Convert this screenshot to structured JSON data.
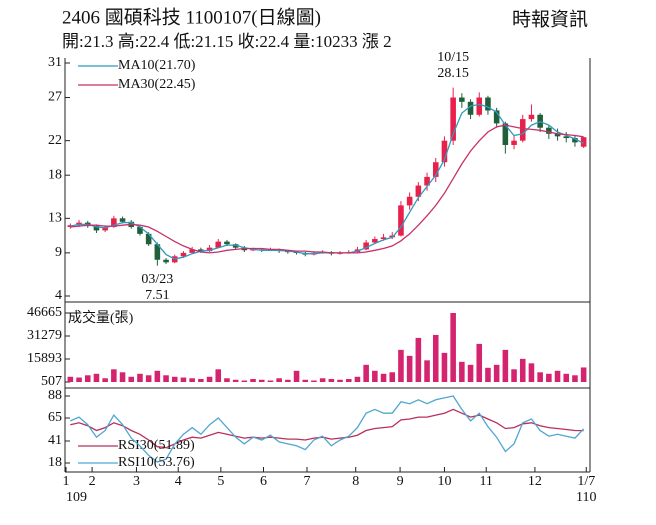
{
  "header": {
    "title": "2406  國碩科技 1100107(日線圖)",
    "source": "時報資訊",
    "quote": "開:21.3 高:22.4 低:21.15 收:22.4 量:10233 漲 2"
  },
  "chart_data": [
    {
      "type": "candlestick",
      "up_color": "#e8204a",
      "down_color": "#1f5f3a",
      "open": [
        12.0,
        12.2,
        12.5,
        12.1,
        11.6,
        12.0,
        13.0,
        12.6,
        12.0,
        11.2,
        10.0,
        8.2,
        7.9,
        8.6,
        9.0,
        9.4,
        9.2,
        9.6,
        10.3,
        10.0,
        9.6,
        9.3,
        9.4,
        9.3,
        9.4,
        9.2,
        9.1,
        9.0,
        8.8,
        9.0,
        9.1,
        8.9,
        9.0,
        9.1,
        9.4,
        10.2,
        10.6,
        10.8,
        11.0,
        14.5,
        15.5,
        16.8,
        17.8,
        19.5,
        22.0,
        27.0,
        26.5,
        25.0,
        27.0,
        25.5,
        24.0,
        21.5,
        22.0,
        24.5,
        25.0,
        23.5,
        22.8,
        22.5,
        22.3,
        21.3
      ],
      "high": [
        12.4,
        12.8,
        12.7,
        12.3,
        12.2,
        13.3,
        13.2,
        12.8,
        12.2,
        11.4,
        10.2,
        8.4,
        8.8,
        9.2,
        9.7,
        9.6,
        9.9,
        10.6,
        10.5,
        10.1,
        9.8,
        9.6,
        9.5,
        9.6,
        9.5,
        9.3,
        9.2,
        9.1,
        9.2,
        9.3,
        9.2,
        9.2,
        9.3,
        9.7,
        10.5,
        10.9,
        11.2,
        11.4,
        15.0,
        16.0,
        17.2,
        18.3,
        20.0,
        22.5,
        28.15,
        27.5,
        26.8,
        27.6,
        27.2,
        25.8,
        24.2,
        22.6,
        25.0,
        26.2,
        25.2,
        23.8,
        23.4,
        23.0,
        22.6,
        22.4
      ],
      "low": [
        11.8,
        12.0,
        11.9,
        11.3,
        11.4,
        11.9,
        12.4,
        11.8,
        11.0,
        9.8,
        7.51,
        7.7,
        7.8,
        8.4,
        8.9,
        9.0,
        9.1,
        9.5,
        9.8,
        9.4,
        9.1,
        9.2,
        9.1,
        9.2,
        9.0,
        8.9,
        8.8,
        8.6,
        8.7,
        8.9,
        8.7,
        8.8,
        8.9,
        9.0,
        9.3,
        10.0,
        10.4,
        10.6,
        10.9,
        14.0,
        15.0,
        16.2,
        17.2,
        19.0,
        21.5,
        25.8,
        24.5,
        24.8,
        25.0,
        23.5,
        20.5,
        21.0,
        21.8,
        24.2,
        23.0,
        22.2,
        22.0,
        21.8,
        21.3,
        21.15
      ],
      "close": [
        12.2,
        12.5,
        12.1,
        11.6,
        12.0,
        13.0,
        12.6,
        12.0,
        11.2,
        10.0,
        8.2,
        7.9,
        8.6,
        9.0,
        9.4,
        9.2,
        9.6,
        10.3,
        10.0,
        9.6,
        9.3,
        9.4,
        9.3,
        9.4,
        9.2,
        9.1,
        9.0,
        8.8,
        9.0,
        9.1,
        8.9,
        9.0,
        9.1,
        9.4,
        10.2,
        10.6,
        10.8,
        11.0,
        14.5,
        15.5,
        16.8,
        17.8,
        19.5,
        22.0,
        27.0,
        26.5,
        25.0,
        27.0,
        25.5,
        24.0,
        21.5,
        22.0,
        24.5,
        25.0,
        23.5,
        22.8,
        22.5,
        22.3,
        21.8,
        22.4
      ],
      "lines": [
        {
          "name": "MA10(21.70)",
          "color": "#2f9bbf",
          "values": [
            12.1,
            12.3,
            12.3,
            12.0,
            11.9,
            12.2,
            12.5,
            12.5,
            12.0,
            11.2,
            10.0,
            8.8,
            8.3,
            8.5,
            8.9,
            9.2,
            9.3,
            9.6,
            9.9,
            9.9,
            9.6,
            9.4,
            9.3,
            9.3,
            9.3,
            9.2,
            9.1,
            8.9,
            8.9,
            9.0,
            9.0,
            9.0,
            9.0,
            9.2,
            9.6,
            10.1,
            10.5,
            10.8,
            12.0,
            13.7,
            15.4,
            16.7,
            18.0,
            19.8,
            22.8,
            25.2,
            26.0,
            26.2,
            25.9,
            25.3,
            23.8,
            22.6,
            22.8,
            23.8,
            24.2,
            23.8,
            23.0,
            22.6,
            22.2,
            21.7
          ]
        },
        {
          "name": "MA30(22.45)",
          "color": "#c8306a",
          "values": [
            12.0,
            12.1,
            12.2,
            12.2,
            12.1,
            12.1,
            12.2,
            12.3,
            12.2,
            12.0,
            11.5,
            10.9,
            10.3,
            9.8,
            9.4,
            9.1,
            9.0,
            9.1,
            9.3,
            9.4,
            9.5,
            9.5,
            9.5,
            9.4,
            9.4,
            9.3,
            9.2,
            9.2,
            9.1,
            9.1,
            9.0,
            9.0,
            9.0,
            9.0,
            9.1,
            9.3,
            9.5,
            9.8,
            10.4,
            11.2,
            12.2,
            13.3,
            14.5,
            15.9,
            17.6,
            19.3,
            20.8,
            22.0,
            23.0,
            23.6,
            23.8,
            23.6,
            23.4,
            23.3,
            23.2,
            23.0,
            22.8,
            22.7,
            22.6,
            22.45
          ]
        }
      ],
      "annotations": [
        {
          "text": "10/15"
        },
        {
          "text": "03/23"
        }
      ],
      "ylim": [
        4,
        31
      ],
      "yticks": [
        4,
        9,
        13,
        18,
        22,
        27,
        31
      ]
    },
    {
      "type": "bar",
      "series": [
        {
          "name": "成交量(張)",
          "color": "#d4246f",
          "values": [
            4000,
            3500,
            5000,
            6000,
            3000,
            9000,
            7000,
            4000,
            6000,
            5000,
            8000,
            5000,
            4000,
            3500,
            3000,
            2500,
            4000,
            9000,
            3000,
            2000,
            1500,
            2500,
            2000,
            1500,
            3000,
            2000,
            8000,
            2000,
            1500,
            3000,
            2500,
            2000,
            2500,
            4000,
            12000,
            8000,
            6000,
            7000,
            22000,
            18000,
            30000,
            15000,
            32000,
            20000,
            46665,
            14000,
            12000,
            26000,
            10000,
            12000,
            22000,
            9000,
            16000,
            13000,
            7000,
            6000,
            8000,
            6000,
            5000,
            10233
          ]
        }
      ],
      "ylim": [
        507,
        46665
      ],
      "yticks": [
        507,
        15893,
        31279,
        46665
      ]
    },
    {
      "type": "line",
      "series": [
        {
          "name": "RSI30(51.89)",
          "color": "#b8305a",
          "values": [
            58,
            60,
            57,
            52,
            55,
            60,
            57,
            52,
            48,
            42,
            35,
            34,
            38,
            42,
            45,
            44,
            47,
            50,
            48,
            46,
            44,
            45,
            44,
            45,
            44,
            43,
            43,
            42,
            44,
            45,
            43,
            44,
            45,
            47,
            52,
            54,
            55,
            56,
            63,
            64,
            66,
            66,
            68,
            70,
            74,
            70,
            66,
            68,
            64,
            60,
            54,
            55,
            59,
            60,
            57,
            55,
            54,
            53,
            52,
            51.89
          ]
        },
        {
          "name": "RSI10(53.76)",
          "color": "#4fa6d2",
          "values": [
            62,
            66,
            58,
            45,
            52,
            68,
            58,
            44,
            36,
            26,
            19,
            22,
            38,
            48,
            55,
            48,
            58,
            65,
            55,
            45,
            38,
            45,
            42,
            47,
            40,
            38,
            36,
            32,
            42,
            46,
            36,
            42,
            46,
            55,
            70,
            74,
            70,
            70,
            82,
            80,
            84,
            80,
            84,
            86,
            88,
            74,
            62,
            70,
            56,
            45,
            30,
            38,
            60,
            64,
            52,
            46,
            48,
            46,
            44,
            53.76
          ]
        }
      ],
      "ylim": [
        18,
        88
      ],
      "yticks": [
        18,
        41,
        65,
        88
      ],
      "xlim": [
        -0.5,
        59.5
      ],
      "xticks": [
        {
          "value": -0.5,
          "label": "1"
        },
        {
          "value": 2.5,
          "label": "2"
        },
        {
          "value": 7.6,
          "label": "3"
        },
        {
          "value": 12.4,
          "label": "4"
        },
        {
          "value": 17.3,
          "label": "5"
        },
        {
          "value": 22.2,
          "label": "6"
        },
        {
          "value": 27.2,
          "label": "7"
        },
        {
          "value": 32.8,
          "label": "8"
        },
        {
          "value": 37.9,
          "label": "9"
        },
        {
          "value": 43.0,
          "label": "10"
        },
        {
          "value": 47.8,
          "label": "11"
        },
        {
          "value": 53.4,
          "label": "12"
        },
        {
          "value": 59.3,
          "label": "1/7"
        }
      ],
      "year_labels": [
        {
          "value": -0.5,
          "label": "109"
        },
        {
          "value": 59.3,
          "label": "110"
        }
      ]
    }
  ]
}
